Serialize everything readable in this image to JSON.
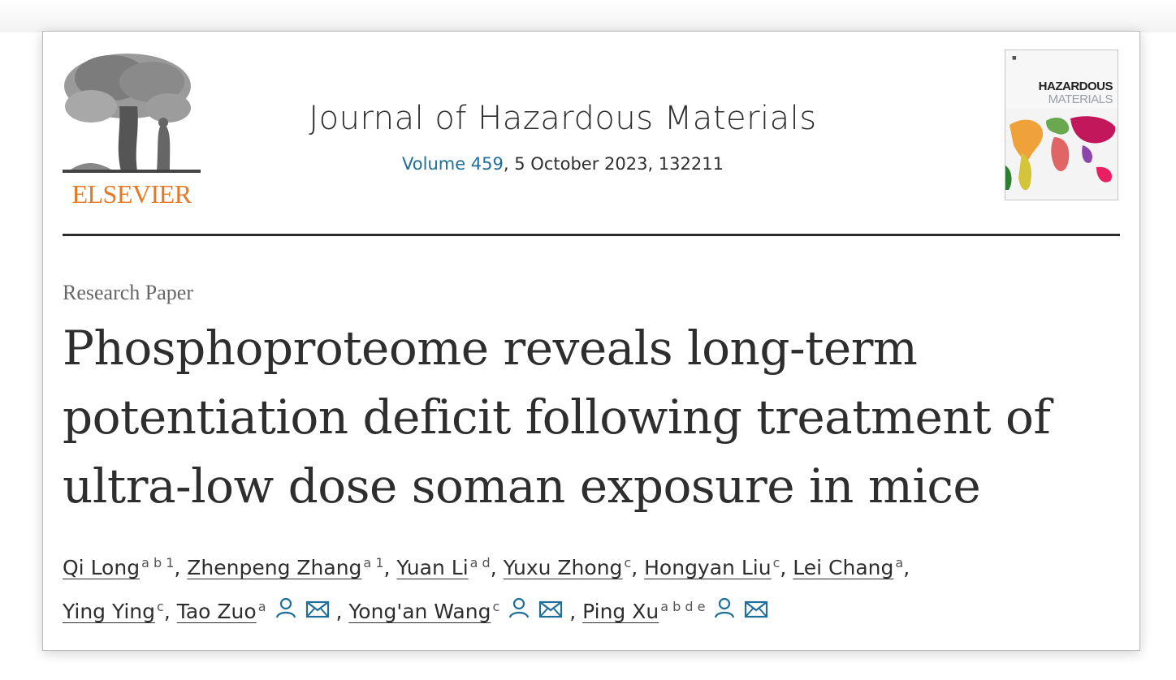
{
  "publisher": {
    "name": "ELSEVIER"
  },
  "journal": {
    "title": "Journal of Hazardous Materials",
    "volume_link": "Volume 459",
    "issue_rest": ", 5 October 2023, 132211"
  },
  "cover": {
    "line1": "HAZARDOUS",
    "line2": "MATERIALS"
  },
  "article": {
    "type": "Research Paper",
    "title": "Phosphoproteome reveals long-term potentiation deficit following treatment of ultra-low dose soman exposure in mice"
  },
  "authors": {
    "line1": [
      {
        "name": "Qi Long",
        "sup": "a b 1",
        "sep": ", "
      },
      {
        "name": "Zhenpeng Zhang",
        "sup": "a 1",
        "sep": ", "
      },
      {
        "name": "Yuan Li",
        "sup": "a d",
        "sep": ", "
      },
      {
        "name": "Yuxu Zhong",
        "sup": "c",
        "sep": ", "
      },
      {
        "name": "Hongyan Liu",
        "sup": "c",
        "sep": ", "
      },
      {
        "name": "Lei Chang",
        "sup": "a",
        "sep": ","
      }
    ],
    "line2": [
      {
        "name": "Ying Ying",
        "sup": "c",
        "sep": ", "
      },
      {
        "name": "Tao Zuo",
        "sup": "a",
        "sep": " , "
      },
      {
        "name": "Yong'an Wang",
        "sup": "c",
        "sep": " , "
      },
      {
        "name": "Ping Xu",
        "sup": "a b d e",
        "sep": ""
      }
    ]
  },
  "colors": {
    "accent_blue": "#1f6d99",
    "publisher_orange": "#e87722",
    "text": "#2e2e2e"
  },
  "icons": {
    "person": "person-icon",
    "email": "email-icon"
  }
}
